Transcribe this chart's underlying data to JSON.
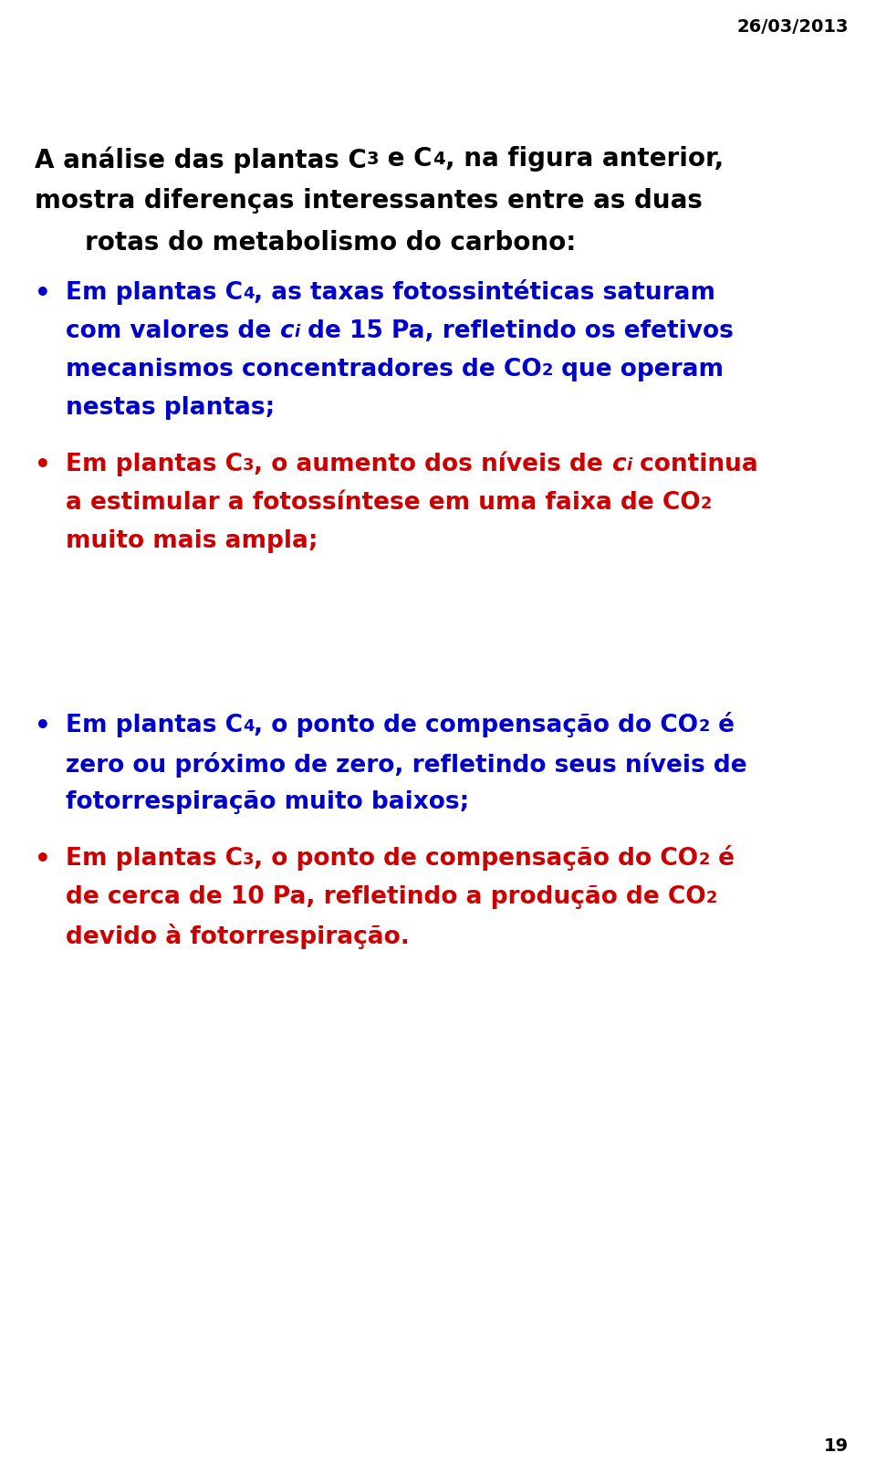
{
  "background_color": "#ffffff",
  "date_text": "26/03/2013",
  "date_color": "#000000",
  "date_fontsize": 14,
  "page_number": "19",
  "page_number_color": "#000000",
  "page_number_fontsize": 14,
  "title_color": "#000000",
  "blue": "#0000cc",
  "red": "#cc0000",
  "title_fontsize": 20,
  "title_sub_fontsize": 14,
  "body_fontsize": 19,
  "body_sub_fontsize": 13,
  "fig_width": 9.6,
  "fig_height": 16.14,
  "dpi": 100
}
